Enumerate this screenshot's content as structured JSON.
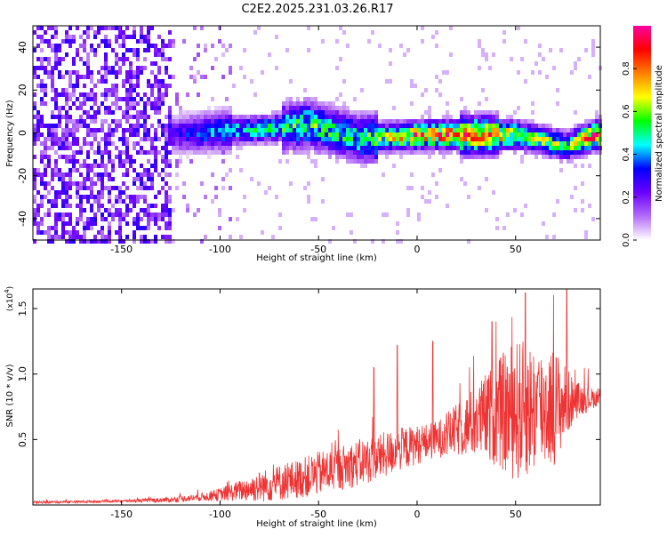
{
  "title": "C2E2.2025.231.03.26.R17",
  "chart_data": [
    {
      "type": "heatmap",
      "xlabel": "Height of straight line (km)",
      "ylabel": "Frequency (Hz)",
      "xlim": [
        -195,
        93
      ],
      "ylim": [
        -50,
        50
      ],
      "x_ticks": [
        -150,
        -100,
        -50,
        0,
        50
      ],
      "y_ticks": [
        -40,
        -20,
        0,
        20,
        40
      ],
      "colorbar": {
        "label": "Normalized spectral amplitude",
        "range": [
          0,
          1
        ],
        "ticks": [
          0.0,
          0.2,
          0.4,
          0.6,
          0.8
        ],
        "colors": [
          "#ffffff",
          "#b36cf7",
          "#6a00ff",
          "#0000ff",
          "#00ffff",
          "#00ff00",
          "#ffff00",
          "#ff8000",
          "#ff0000",
          "#ff00a0"
        ]
      },
      "description_points": [
        {
          "x": -195,
          "y": 0,
          "v": 0.12
        },
        {
          "x": -125,
          "y": 0,
          "v": 0.25
        },
        {
          "x": -100,
          "y": 2,
          "v": 0.45
        },
        {
          "x": -75,
          "y": 3,
          "v": 0.5
        },
        {
          "x": -55,
          "y": 5,
          "v": 0.55
        },
        {
          "x": -30,
          "y": -2,
          "v": 0.5
        },
        {
          "x": 0,
          "y": 0,
          "v": 0.85
        },
        {
          "x": 20,
          "y": 0,
          "v": 0.9
        },
        {
          "x": 50,
          "y": 0,
          "v": 0.7
        },
        {
          "x": 75,
          "y": -5,
          "v": 0.55
        },
        {
          "x": 90,
          "y": 0,
          "v": 0.95
        }
      ]
    },
    {
      "type": "line",
      "xlabel": "Height of straight line (km)",
      "ylabel": "SNR (10 * v/v)",
      "y_multiplier": "(x10",
      "y_multiplier_exp": "4",
      "y_multiplier_close": ")",
      "xlim": [
        -195,
        93
      ],
      "ylim": [
        0,
        1.65
      ],
      "x_ticks": [
        -150,
        -100,
        -50,
        0,
        50
      ],
      "y_ticks": [
        0.5,
        1.0,
        1.5
      ],
      "y_tick_labels": [
        "0.5",
        "1.0",
        "1.5"
      ],
      "color": "#ee3333",
      "envelope": {
        "x": [
          -195,
          -150,
          -125,
          -110,
          -100,
          -90,
          -80,
          -70,
          -60,
          -50,
          -40,
          -30,
          -20,
          -10,
          0,
          10,
          20,
          30,
          40,
          50,
          60,
          70,
          80,
          93
        ],
        "base": [
          0.02,
          0.03,
          0.04,
          0.06,
          0.08,
          0.11,
          0.14,
          0.17,
          0.2,
          0.24,
          0.28,
          0.32,
          0.36,
          0.42,
          0.46,
          0.5,
          0.57,
          0.64,
          0.7,
          0.72,
          0.74,
          0.76,
          0.8,
          0.82
        ],
        "spread": [
          0.01,
          0.01,
          0.02,
          0.03,
          0.05,
          0.08,
          0.12,
          0.14,
          0.15,
          0.17,
          0.17,
          0.18,
          0.18,
          0.17,
          0.15,
          0.14,
          0.2,
          0.28,
          0.4,
          0.55,
          0.5,
          0.45,
          0.15,
          0.05
        ]
      },
      "spikes": [
        {
          "x": -22,
          "y": 1.05
        },
        {
          "x": -10,
          "y": 1.22
        },
        {
          "x": 8,
          "y": 1.25
        },
        {
          "x": 38,
          "y": 1.4
        },
        {
          "x": 55,
          "y": 1.62
        },
        {
          "x": 76,
          "y": 1.65
        }
      ]
    }
  ]
}
